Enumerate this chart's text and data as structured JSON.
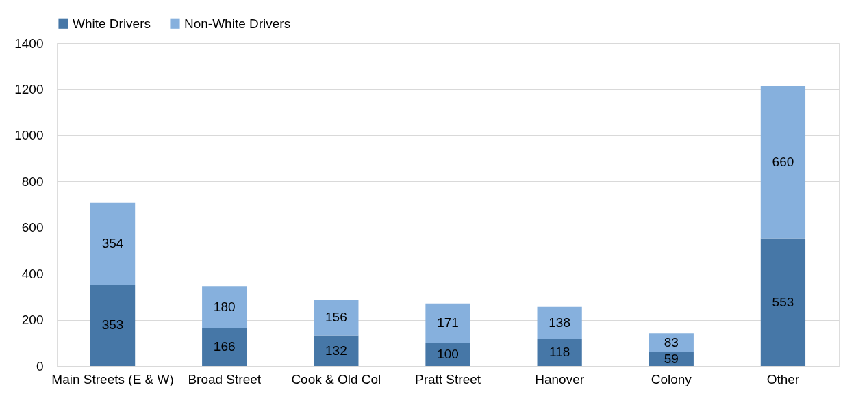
{
  "chart_data": {
    "type": "bar",
    "stacked": true,
    "categories": [
      "Main Streets (E & W)",
      "Broad Street",
      "Cook & Old Col",
      "Pratt Street",
      "Hanover",
      "Colony",
      "Other"
    ],
    "series": [
      {
        "name": "White Drivers",
        "color": "#4677a7",
        "values": [
          353,
          166,
          132,
          100,
          118,
          59,
          553
        ]
      },
      {
        "name": "Non-White Drivers",
        "color": "#86b0dd",
        "values": [
          354,
          180,
          156,
          171,
          138,
          83,
          660
        ]
      }
    ],
    "ylim": [
      0,
      1400
    ],
    "yticks": [
      0,
      200,
      400,
      600,
      800,
      1000,
      1200,
      1400
    ],
    "grid": "y",
    "legend": "top",
    "data_labels": true
  }
}
